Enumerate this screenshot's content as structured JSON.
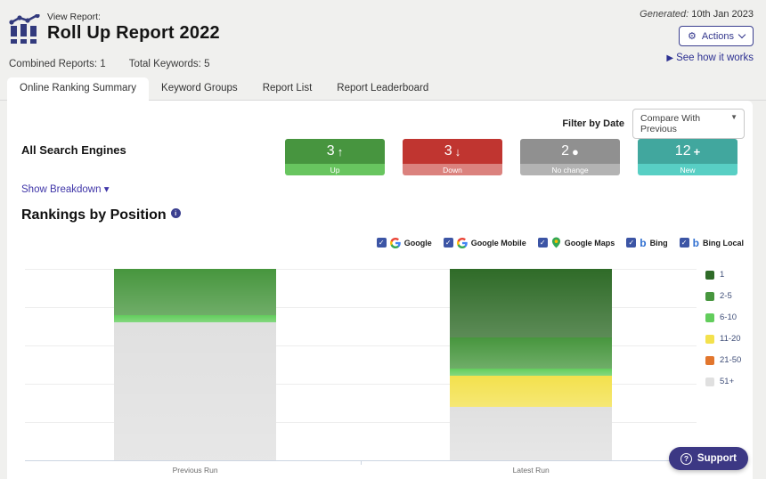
{
  "header": {
    "view_report_label": "View Report:",
    "title": "Roll Up Report 2022",
    "generated_label": "Generated:",
    "generated_date": "10th Jan 2023",
    "actions_label": "Actions",
    "gear_icon": "⚙",
    "see_how_label": "See how it works",
    "see_how_icon": "▶",
    "combined_reports_label": "Combined Reports:",
    "combined_reports_value": "1",
    "total_keywords_label": "Total Keywords:",
    "total_keywords_value": "5"
  },
  "tabs": [
    {
      "label": "Online Ranking Summary",
      "active": true
    },
    {
      "label": "Keyword Groups",
      "active": false
    },
    {
      "label": "Report List",
      "active": false
    },
    {
      "label": "Report Leaderboard",
      "active": false
    }
  ],
  "filter": {
    "label": "Filter by Date",
    "selected": "Compare With Previous",
    "caret": "▼"
  },
  "summary": {
    "section_title": "All Search Engines",
    "cards": [
      {
        "value": "3",
        "symbol": "↑",
        "label": "Up",
        "color": "#47953f",
        "light": "#68c55f"
      },
      {
        "value": "3",
        "symbol": "↓",
        "label": "Down",
        "color": "#c03530",
        "light": "#db827e"
      },
      {
        "value": "2",
        "symbol": "●",
        "label": "No change",
        "color": "#909090",
        "light": "#b3b3b3"
      },
      {
        "value": "12",
        "symbol": "+",
        "label": "New",
        "color": "#41a79e",
        "light": "#58cfc4"
      }
    ],
    "show_breakdown_label": "Show Breakdown",
    "show_breakdown_caret": "▾"
  },
  "rankings": {
    "title": "Rankings by Position",
    "info_icon": "i",
    "engines": [
      {
        "label": "Google",
        "checked": true,
        "icon": "google-icon"
      },
      {
        "label": "Google Mobile",
        "checked": true,
        "icon": "google-icon"
      },
      {
        "label": "Google Maps",
        "checked": true,
        "icon": "maps-pin-icon"
      },
      {
        "label": "Bing",
        "checked": true,
        "icon": "bing-icon"
      },
      {
        "label": "Bing Local",
        "checked": true,
        "icon": "bing-icon"
      }
    ],
    "check_glyph": "✓"
  },
  "chart_data": {
    "type": "bar",
    "stacked": true,
    "percent_scale": true,
    "title": "Rankings by Position",
    "categories": [
      "Previous Run",
      "Latest Run"
    ],
    "series": [
      {
        "name": "1",
        "color": "#2f6b28",
        "values": [
          0,
          36
        ]
      },
      {
        "name": "2-5",
        "color": "#47963e",
        "values": [
          24,
          16
        ]
      },
      {
        "name": "6-10",
        "color": "#62cd5c",
        "values": [
          4,
          4
        ]
      },
      {
        "name": "11-20",
        "color": "#f3e14d",
        "values": [
          0,
          16
        ]
      },
      {
        "name": "21-50",
        "color": "#e2762d",
        "values": [
          0,
          0
        ]
      },
      {
        "name": "51+",
        "color": "#e0e0e0",
        "values": [
          72,
          28
        ]
      }
    ],
    "ylim": [
      0,
      100
    ],
    "gridlines": 5,
    "grid": true,
    "legend_position": "right",
    "xlabel": "",
    "ylabel": ""
  },
  "support": {
    "label": "Support",
    "icon": "?"
  }
}
